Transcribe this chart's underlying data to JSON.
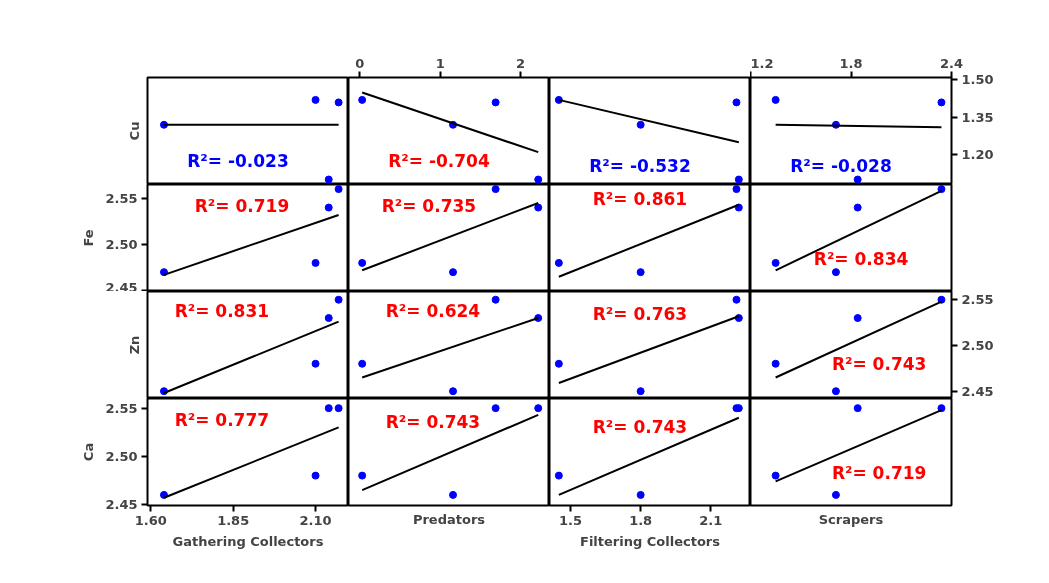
{
  "chart_data": [
    {
      "type": "scatter",
      "ylabel": "Cu",
      "xlim": [
        1.59,
        2.2
      ],
      "ylim": [
        1.08,
        1.51
      ],
      "tick_labels": false,
      "series": [
        {
          "color": "#0000ff",
          "marker": "circle",
          "x": [
            1.64,
            2.1,
            2.14,
            2.17
          ],
          "values": [
            1.32,
            1.42,
            1.1,
            1.41
          ]
        },
        {
          "type": "line",
          "color": "#000000",
          "x": [
            1.64,
            2.17
          ],
          "values": [
            1.32,
            1.32
          ]
        }
      ],
      "annotations": [
        "R²= -0.023"
      ]
    },
    {
      "type": "scatter",
      "xlim": [
        -0.14,
        2.36
      ],
      "xticks": [
        0,
        1,
        2
      ],
      "ylim": [
        1.08,
        1.51
      ],
      "tick_labels": "x",
      "series": [
        {
          "color": "#0000ff",
          "marker": "circle",
          "x": [
            0.03,
            1.16,
            1.69,
            2.22
          ],
          "values": [
            1.42,
            1.32,
            1.41,
            1.1
          ]
        },
        {
          "type": "line",
          "color": "#000000",
          "x": [
            0.03,
            2.22
          ],
          "values": [
            1.45,
            1.21
          ]
        }
      ],
      "annotations": [
        "R²= -0.704"
      ]
    },
    {
      "type": "scatter",
      "xlim": [
        1.41,
        2.27
      ],
      "ylim": [
        1.08,
        1.51
      ],
      "tick_labels": false,
      "series": [
        {
          "color": "#0000ff",
          "marker": "circle",
          "x": [
            1.45,
            1.8,
            2.21,
            2.22
          ],
          "values": [
            1.42,
            1.32,
            1.41,
            1.1
          ]
        },
        {
          "type": "line",
          "color": "#000000",
          "x": [
            1.45,
            2.22
          ],
          "values": [
            1.42,
            1.25
          ]
        }
      ],
      "annotations": [
        "R²= -0.532"
      ]
    },
    {
      "type": "scatter",
      "xlim": [
        1.2,
        2.4
      ],
      "xticks": [
        1.2,
        1.8,
        2.4
      ],
      "ylim": [
        1.08,
        1.51
      ],
      "yticks": [
        {
          "value": 1.2,
          "label": "1.20"
        },
        1.35,
        {
          "value": 1.5,
          "label": "1.50"
        }
      ],
      "series": [
        {
          "color": "#0000ff",
          "marker": "circle",
          "x": [
            1.35,
            1.71,
            1.84,
            2.34
          ],
          "values": [
            1.42,
            1.32,
            1.1,
            1.41
          ]
        },
        {
          "type": "line",
          "color": "#000000",
          "x": [
            1.35,
            2.34
          ],
          "values": [
            1.32,
            1.31
          ]
        }
      ],
      "annotations": [
        "R²= -0.028"
      ]
    },
    {
      "type": "scatter",
      "ylabel": "Fe",
      "xlim": [
        1.59,
        2.2
      ],
      "ylim": [
        2.449,
        2.565
      ],
      "yticks": [
        2.45,
        {
          "value": 2.5,
          "label": "2.50"
        },
        2.55
      ],
      "tick_labels": "y",
      "series": [
        {
          "color": "#0000ff",
          "marker": "circle",
          "x": [
            1.64,
            2.1,
            2.14,
            2.17
          ],
          "values": [
            2.47,
            2.48,
            2.54,
            2.56
          ]
        },
        {
          "type": "line",
          "color": "#000000",
          "x": [
            1.64,
            2.17
          ],
          "values": [
            2.467,
            2.532
          ]
        }
      ],
      "annotations": [
        "R²= 0.719"
      ]
    },
    {
      "type": "scatter",
      "xlim": [
        -0.14,
        2.36
      ],
      "ylim": [
        2.449,
        2.565
      ],
      "tick_labels": false,
      "series": [
        {
          "color": "#0000ff",
          "marker": "circle",
          "x": [
            0.03,
            1.16,
            1.69,
            2.22
          ],
          "values": [
            2.48,
            2.47,
            2.56,
            2.54
          ]
        },
        {
          "type": "line",
          "color": "#000000",
          "x": [
            0.03,
            2.22
          ],
          "values": [
            2.472,
            2.545
          ]
        }
      ],
      "annotations": [
        "R²= 0.735"
      ]
    },
    {
      "type": "scatter",
      "xlim": [
        1.41,
        2.27
      ],
      "ylim": [
        2.449,
        2.565
      ],
      "tick_labels": false,
      "series": [
        {
          "color": "#0000ff",
          "marker": "circle",
          "x": [
            1.45,
            1.8,
            2.21,
            2.22
          ],
          "values": [
            2.48,
            2.47,
            2.56,
            2.54
          ]
        },
        {
          "type": "line",
          "color": "#000000",
          "x": [
            1.45,
            2.22
          ],
          "values": [
            2.465,
            2.543
          ]
        }
      ],
      "annotations": [
        "R²= 0.861"
      ]
    },
    {
      "type": "scatter",
      "xlim": [
        1.2,
        2.4
      ],
      "ylim": [
        2.449,
        2.565
      ],
      "tick_labels": false,
      "series": [
        {
          "color": "#0000ff",
          "marker": "circle",
          "x": [
            1.35,
            1.71,
            1.84,
            2.34
          ],
          "values": [
            2.48,
            2.47,
            2.54,
            2.56
          ]
        },
        {
          "type": "line",
          "color": "#000000",
          "x": [
            1.35,
            2.34
          ],
          "values": [
            2.472,
            2.558
          ]
        }
      ],
      "annotations": [
        "R²= 0.834"
      ]
    },
    {
      "type": "scatter",
      "ylabel": "Zn",
      "xlim": [
        1.59,
        2.2
      ],
      "ylim": [
        2.442,
        2.559
      ],
      "tick_labels": false,
      "series": [
        {
          "color": "#0000ff",
          "marker": "circle",
          "x": [
            1.64,
            2.1,
            2.14,
            2.17
          ],
          "values": [
            2.45,
            2.48,
            2.53,
            2.55
          ]
        },
        {
          "type": "line",
          "color": "#000000",
          "x": [
            1.64,
            2.17
          ],
          "values": [
            2.448,
            2.526
          ]
        }
      ],
      "annotations": [
        "R²= 0.831"
      ]
    },
    {
      "type": "scatter",
      "xlim": [
        -0.14,
        2.36
      ],
      "ylim": [
        2.442,
        2.559
      ],
      "tick_labels": false,
      "series": [
        {
          "color": "#0000ff",
          "marker": "circle",
          "x": [
            0.03,
            1.16,
            1.69,
            2.22
          ],
          "values": [
            2.48,
            2.45,
            2.55,
            2.53
          ]
        },
        {
          "type": "line",
          "color": "#000000",
          "x": [
            0.03,
            2.22
          ],
          "values": [
            2.465,
            2.53
          ]
        }
      ],
      "annotations": [
        "R²= 0.624"
      ]
    },
    {
      "type": "scatter",
      "xlim": [
        1.41,
        2.27
      ],
      "ylim": [
        2.442,
        2.559
      ],
      "tick_labels": false,
      "series": [
        {
          "color": "#0000ff",
          "marker": "circle",
          "x": [
            1.45,
            1.8,
            2.21,
            2.22
          ],
          "values": [
            2.48,
            2.45,
            2.55,
            2.53
          ]
        },
        {
          "type": "line",
          "color": "#000000",
          "x": [
            1.45,
            2.22
          ],
          "values": [
            2.459,
            2.532
          ]
        }
      ],
      "annotations": [
        "R²= 0.763"
      ]
    },
    {
      "type": "scatter",
      "xlim": [
        1.2,
        2.4
      ],
      "ylim": [
        2.442,
        2.559
      ],
      "yticks": [
        2.45,
        {
          "value": 2.5,
          "label": "2.50"
        },
        2.55
      ],
      "tick_labels": "y",
      "series": [
        {
          "color": "#0000ff",
          "marker": "circle",
          "x": [
            1.35,
            1.71,
            1.84,
            2.34
          ],
          "values": [
            2.48,
            2.45,
            2.53,
            2.55
          ]
        },
        {
          "type": "line",
          "color": "#000000",
          "x": [
            1.35,
            2.34
          ],
          "values": [
            2.465,
            2.548
          ]
        }
      ],
      "annotations": [
        "R²= 0.743"
      ]
    },
    {
      "type": "scatter",
      "ylabel": "Ca",
      "xlabel": "Gathering Collectors",
      "xlim": [
        1.59,
        2.2
      ],
      "xticks": [
        {
          "value": 1.6,
          "label": "1.60"
        },
        1.85,
        {
          "value": 2.1,
          "label": "2.10"
        }
      ],
      "ylim": [
        2.449,
        2.56
      ],
      "yticks": [
        2.45,
        {
          "value": 2.5,
          "label": "2.50"
        },
        2.55
      ],
      "series": [
        {
          "color": "#0000ff",
          "marker": "circle",
          "x": [
            1.64,
            2.1,
            2.14,
            2.17
          ],
          "values": [
            2.46,
            2.48,
            2.55,
            2.55
          ]
        },
        {
          "type": "line",
          "color": "#000000",
          "x": [
            1.64,
            2.17
          ],
          "values": [
            2.457,
            2.53
          ]
        }
      ],
      "annotations": [
        "R²= 0.777"
      ]
    },
    {
      "type": "scatter",
      "xlabel": "Predators",
      "xlim": [
        -0.14,
        2.36
      ],
      "ylim": [
        2.449,
        2.56
      ],
      "tick_labels": false,
      "series": [
        {
          "color": "#0000ff",
          "marker": "circle",
          "x": [
            0.03,
            1.16,
            1.69,
            2.22
          ],
          "values": [
            2.48,
            2.46,
            2.55,
            2.55
          ]
        },
        {
          "type": "line",
          "color": "#000000",
          "x": [
            0.03,
            2.22
          ],
          "values": [
            2.465,
            2.543
          ]
        }
      ],
      "annotations": [
        "R²= 0.743"
      ]
    },
    {
      "type": "scatter",
      "xlabel": "Filtering Collectors",
      "xlim": [
        1.41,
        2.27
      ],
      "xticks": [
        1.5,
        1.8,
        2.1
      ],
      "ylim": [
        2.449,
        2.56
      ],
      "tick_labels": "x",
      "series": [
        {
          "color": "#0000ff",
          "marker": "circle",
          "x": [
            1.45,
            1.8,
            2.21,
            2.22
          ],
          "values": [
            2.48,
            2.46,
            2.55,
            2.55
          ]
        },
        {
          "type": "line",
          "color": "#000000",
          "x": [
            1.45,
            2.22
          ],
          "values": [
            2.46,
            2.54
          ]
        }
      ],
      "annotations": [
        "R²= 0.743"
      ]
    },
    {
      "type": "scatter",
      "xlabel": "Scrapers",
      "xlim": [
        1.2,
        2.4
      ],
      "ylim": [
        2.449,
        2.56
      ],
      "tick_labels": false,
      "series": [
        {
          "color": "#0000ff",
          "marker": "circle",
          "x": [
            1.35,
            1.71,
            1.84,
            2.34
          ],
          "values": [
            2.48,
            2.46,
            2.55,
            2.55
          ]
        },
        {
          "type": "line",
          "color": "#000000",
          "x": [
            1.35,
            2.34
          ],
          "values": [
            2.474,
            2.548
          ]
        }
      ],
      "annotations": [
        "R²= 0.719"
      ]
    }
  ]
}
